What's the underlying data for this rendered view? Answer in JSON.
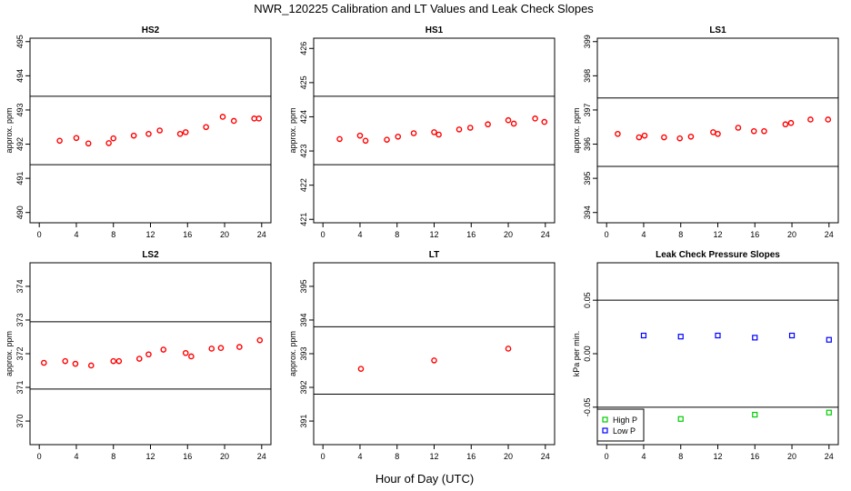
{
  "figure": {
    "title": "NWR_120225  Calibration and LT Values and Leak Check Slopes",
    "xlabel": "Hour of Day (UTC)"
  },
  "chart_data": [
    {
      "type": "scatter",
      "title": "HS2",
      "ylabel": "approx. ppm",
      "xlim": [
        -1,
        25
      ],
      "ylim": [
        489.7,
        495.1
      ],
      "xticks": [
        0,
        4,
        8,
        12,
        16,
        20,
        24
      ],
      "yticks": [
        490,
        491,
        492,
        493,
        494,
        495
      ],
      "hlines": [
        491.4,
        493.4
      ],
      "series": [
        {
          "color": "#ff0000",
          "marker": "circle",
          "x": [
            2.2,
            4.0,
            5.3,
            7.5,
            8.0,
            10.2,
            11.8,
            13.0,
            15.2,
            15.8,
            18.0,
            19.8,
            21.0,
            23.2,
            23.7
          ],
          "y": [
            492.1,
            492.18,
            492.02,
            492.03,
            492.17,
            492.25,
            492.3,
            492.4,
            492.3,
            492.35,
            492.5,
            492.8,
            492.68,
            492.75,
            492.75
          ]
        }
      ]
    },
    {
      "type": "scatter",
      "title": "HS1",
      "ylabel": "approx. ppm",
      "xlim": [
        -1,
        25
      ],
      "ylim": [
        420.9,
        426.3
      ],
      "xticks": [
        0,
        4,
        8,
        12,
        16,
        20,
        24
      ],
      "yticks": [
        421,
        422,
        423,
        424,
        425,
        426
      ],
      "hlines": [
        422.6,
        424.6
      ],
      "series": [
        {
          "color": "#ff0000",
          "marker": "circle",
          "x": [
            1.8,
            4.0,
            4.6,
            6.9,
            8.1,
            9.8,
            12.0,
            12.5,
            14.7,
            15.9,
            17.8,
            20.0,
            20.6,
            22.9,
            23.9
          ],
          "y": [
            423.35,
            423.45,
            423.3,
            423.33,
            423.42,
            423.52,
            423.55,
            423.48,
            423.63,
            423.68,
            423.78,
            423.9,
            423.8,
            423.95,
            423.85
          ]
        }
      ]
    },
    {
      "type": "scatter",
      "title": "LS1",
      "ylabel": "approx. ppm",
      "xlim": [
        -1,
        25
      ],
      "ylim": [
        393.7,
        399.1
      ],
      "xticks": [
        0,
        4,
        8,
        12,
        16,
        20,
        24
      ],
      "yticks": [
        394,
        395,
        396,
        397,
        398,
        399
      ],
      "hlines": [
        395.35,
        397.35
      ],
      "series": [
        {
          "color": "#ff0000",
          "marker": "circle",
          "x": [
            1.2,
            3.5,
            4.1,
            6.2,
            7.9,
            9.1,
            11.5,
            12.0,
            14.2,
            15.9,
            17.0,
            19.3,
            19.9,
            22.0,
            23.9
          ],
          "y": [
            396.3,
            396.2,
            396.25,
            396.2,
            396.17,
            396.22,
            396.35,
            396.3,
            396.48,
            396.38,
            396.38,
            396.58,
            396.62,
            396.72,
            396.72
          ]
        }
      ]
    },
    {
      "type": "scatter",
      "title": "LS2",
      "ylabel": "approx. ppm",
      "xlim": [
        -1,
        25
      ],
      "ylim": [
        369.3,
        374.7
      ],
      "xticks": [
        0,
        4,
        8,
        12,
        16,
        20,
        24
      ],
      "yticks": [
        370,
        371,
        372,
        373,
        374
      ],
      "hlines": [
        370.95,
        372.95
      ],
      "series": [
        {
          "color": "#ff0000",
          "marker": "circle",
          "x": [
            0.5,
            2.8,
            3.9,
            5.6,
            8.0,
            8.6,
            10.8,
            11.8,
            13.4,
            15.8,
            16.4,
            18.6,
            19.6,
            21.6,
            23.8
          ],
          "y": [
            371.73,
            371.78,
            371.7,
            371.65,
            371.78,
            371.78,
            371.85,
            371.98,
            372.12,
            372.02,
            371.92,
            372.15,
            372.17,
            372.2,
            372.4
          ]
        }
      ]
    },
    {
      "type": "scatter",
      "title": "LT",
      "ylabel": "approx. ppm",
      "xlim": [
        -1,
        25
      ],
      "ylim": [
        390.3,
        395.7
      ],
      "xticks": [
        0,
        4,
        8,
        12,
        16,
        20,
        24
      ],
      "yticks": [
        391,
        392,
        393,
        394,
        395
      ],
      "hlines": [
        391.8,
        393.8
      ],
      "series": [
        {
          "color": "#ff0000",
          "marker": "circle",
          "x": [
            4.1,
            12.0,
            20.0
          ],
          "y": [
            392.55,
            392.8,
            393.15
          ]
        }
      ]
    },
    {
      "type": "scatter",
      "title": "Leak Check Pressure Slopes",
      "ylabel": "kPa per min.",
      "xlim": [
        -1,
        25
      ],
      "ylim": [
        -0.085,
        0.085
      ],
      "xticks": [
        0,
        4,
        8,
        12,
        16,
        20,
        24
      ],
      "yticks": [
        -0.05,
        0.0,
        0.05
      ],
      "ytick_labels": [
        "-0.05",
        "0.00",
        "0.05"
      ],
      "hlines": [
        -0.05,
        0.05
      ],
      "legend": {
        "placement": "bottom-left",
        "entries": [
          "High P",
          "Low P"
        ]
      },
      "series": [
        {
          "name": "High P",
          "color": "#00cc00",
          "marker": "square",
          "x": [
            8.0,
            16.0,
            24.0
          ],
          "y": [
            -0.061,
            -0.057,
            -0.055
          ]
        },
        {
          "name": "Low P",
          "color": "#0000ff",
          "marker": "square",
          "x": [
            4.0,
            8.0,
            12.0,
            16.0,
            20.0,
            24.0
          ],
          "y": [
            0.017,
            0.016,
            0.017,
            0.015,
            0.017,
            0.013
          ]
        }
      ]
    }
  ]
}
